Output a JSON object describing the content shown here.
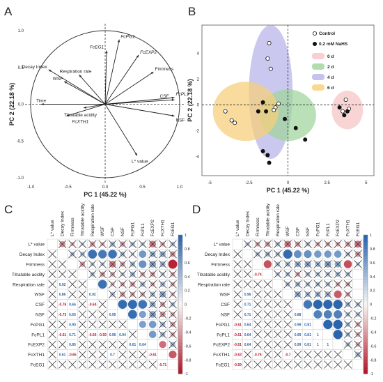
{
  "panels": {
    "A": "A",
    "B": "B",
    "C": "C",
    "D": "D"
  },
  "chart_data": [
    {
      "type": "scatter",
      "subtype": "biplot-loadings",
      "xlabel": "PC 1 (45.22 %)",
      "ylabel": "PC 2 (22.18 %)",
      "xlim": [
        -1.0,
        1.0
      ],
      "ylim": [
        -1.0,
        1.0
      ],
      "x_ticks": [
        "-1.0",
        "-0.5",
        "0.0",
        "0.5",
        "1.0"
      ],
      "y_ticks": [
        "1.0",
        "0.5",
        "0.0",
        "-0.5",
        "-1.0"
      ],
      "grid": false,
      "vectors": [
        {
          "label": "FcPG1",
          "x": 0.19,
          "y": 0.88
        },
        {
          "label": "FcEG1",
          "x": 0.02,
          "y": 0.73
        },
        {
          "label": "FcEXP2",
          "x": 0.45,
          "y": 0.67
        },
        {
          "label": "Firmness",
          "x": 0.65,
          "y": 0.44
        },
        {
          "label": "Decay Index",
          "x": -0.76,
          "y": 0.47
        },
        {
          "label": "Respiration rate",
          "x": -0.35,
          "y": 0.4
        },
        {
          "label": "WSF",
          "x": -0.55,
          "y": 0.31
        },
        {
          "label": "Time",
          "x": -0.86,
          "y": 0.0
        },
        {
          "label": "FcXTH1",
          "x": -0.52,
          "y": -0.16
        },
        {
          "label": "Titratable acidity",
          "x": -0.29,
          "y": -0.05
        },
        {
          "label": "CSF",
          "x": 0.93,
          "y": 0.06
        },
        {
          "label": "FcPL1",
          "x": 0.93,
          "y": 0.09
        },
        {
          "label": "NSF",
          "x": 0.93,
          "y": -0.16
        },
        {
          "label": "L* value",
          "x": 0.43,
          "y": -0.7
        }
      ]
    },
    {
      "type": "scatter",
      "subtype": "pca-scores",
      "xlabel": "PC 1 (45.22 %)",
      "ylabel": "PC 2 (22.18 %)",
      "xlim": [
        -5.5,
        5.5
      ],
      "ylim": [
        -5.5,
        6.2
      ],
      "x_ticks": [
        "-5",
        "-2.5",
        "0",
        "2.5",
        "5"
      ],
      "y_ticks": [
        "4",
        "2",
        "0",
        "-2",
        "-4"
      ],
      "legend_position": "top-right",
      "legend": [
        {
          "label": "Control",
          "marker": "open-circle"
        },
        {
          "label": "0.2 mM NaHS",
          "marker": "filled-circle"
        },
        {
          "label": "0 d",
          "color": "#f7c3c5"
        },
        {
          "label": "2 d",
          "color": "#9ed49a"
        },
        {
          "label": "4 d",
          "color": "#b7b3ea"
        },
        {
          "label": "6 d",
          "color": "#f7cf77"
        }
      ],
      "ellipses": [
        {
          "group": "0 d",
          "color": "#f7c3c5",
          "cx": 3.8,
          "cy": -0.4,
          "rx": 1.0,
          "ry": 1.5,
          "angle": 0
        },
        {
          "group": "4 d",
          "color": "#b7b3ea",
          "cx": -1.1,
          "cy": 1.0,
          "rx": 1.4,
          "ry": 5.2,
          "angle": 0
        },
        {
          "group": "2 d",
          "color": "#9ed49a",
          "cx": 0.0,
          "cy": -0.8,
          "rx": 1.8,
          "ry": 2.0,
          "angle": 0
        },
        {
          "group": "6 d",
          "color": "#f7cf77",
          "cx": -2.7,
          "cy": -0.5,
          "rx": 2.1,
          "ry": 2.3,
          "angle": 0
        }
      ],
      "points": [
        {
          "x": 3.7,
          "y": 0.4,
          "treatment": "Control",
          "day": "0 d"
        },
        {
          "x": 3.9,
          "y": -0.3,
          "treatment": "Control",
          "day": "0 d"
        },
        {
          "x": 3.5,
          "y": -0.5,
          "treatment": "Control",
          "day": "0 d"
        },
        {
          "x": 3.6,
          "y": -0.8,
          "treatment": "NaHS",
          "day": "0 d"
        },
        {
          "x": 3.8,
          "y": -0.5,
          "treatment": "NaHS",
          "day": "0 d"
        },
        {
          "x": 3.3,
          "y": -0.2,
          "treatment": "NaHS",
          "day": "0 d"
        },
        {
          "x": -1.2,
          "y": 4.8,
          "treatment": "Control",
          "day": "4 d"
        },
        {
          "x": -1.3,
          "y": 3.6,
          "treatment": "Control",
          "day": "4 d"
        },
        {
          "x": -1.1,
          "y": 2.8,
          "treatment": "Control",
          "day": "4 d"
        },
        {
          "x": -1.6,
          "y": -3.6,
          "treatment": "NaHS",
          "day": "4 d"
        },
        {
          "x": -1.3,
          "y": -3.9,
          "treatment": "NaHS",
          "day": "4 d"
        },
        {
          "x": -1.2,
          "y": -4.5,
          "treatment": "NaHS",
          "day": "4 d"
        },
        {
          "x": -0.8,
          "y": -0.2,
          "treatment": "Control",
          "day": "2 d"
        },
        {
          "x": -0.6,
          "y": 0.1,
          "treatment": "Control",
          "day": "2 d"
        },
        {
          "x": -0.9,
          "y": -0.4,
          "treatment": "Control",
          "day": "2 d"
        },
        {
          "x": 0.5,
          "y": -1.8,
          "treatment": "NaHS",
          "day": "2 d"
        },
        {
          "x": 1.1,
          "y": -2.7,
          "treatment": "NaHS",
          "day": "2 d"
        },
        {
          "x": -0.2,
          "y": -1.1,
          "treatment": "NaHS",
          "day": "2 d"
        },
        {
          "x": -4.0,
          "y": -0.5,
          "treatment": "Control",
          "day": "6 d"
        },
        {
          "x": -3.6,
          "y": -1.2,
          "treatment": "Control",
          "day": "6 d"
        },
        {
          "x": -3.4,
          "y": -1.4,
          "treatment": "Control",
          "day": "6 d"
        },
        {
          "x": -1.6,
          "y": 0.2,
          "treatment": "NaHS",
          "day": "6 d"
        },
        {
          "x": -1.4,
          "y": -0.5,
          "treatment": "NaHS",
          "day": "6 d"
        },
        {
          "x": -1.9,
          "y": -0.5,
          "treatment": "NaHS",
          "day": "6 d"
        }
      ]
    },
    {
      "type": "heatmap",
      "subtype": "correlation-matrix",
      "panel": "C",
      "variables": [
        "L* value",
        "Decay Index",
        "Firmness",
        "Titratable acidity",
        "Respiration rate",
        "WSF",
        "CSF",
        "NSF",
        "FcPG1",
        "FcPL1",
        "FcEXP2",
        "FcXTH1",
        "FcEG1"
      ],
      "colorbar_ticks": [
        "1",
        "0.8",
        "0.6",
        "0.4",
        "0.2",
        "0",
        "-0.2",
        "-0.4",
        "-0.6",
        "-0.8",
        "-1"
      ],
      "lower_values": [
        {
          "row": 4,
          "col": 1,
          "text": "0.92"
        },
        {
          "row": 5,
          "col": 1,
          "text": "0.86"
        },
        {
          "row": 5,
          "col": 4,
          "text": "0.92"
        },
        {
          "row": 6,
          "col": 1,
          "text": "-0.76"
        },
        {
          "row": 6,
          "col": 2,
          "text": "0.66"
        },
        {
          "row": 6,
          "col": 4,
          "text": "-0.64"
        },
        {
          "row": 7,
          "col": 1,
          "text": "-0.73"
        },
        {
          "row": 7,
          "col": 2,
          "text": "0.65"
        },
        {
          "row": 7,
          "col": 6,
          "text": "0.95"
        },
        {
          "row": 8,
          "col": 2,
          "text": "0.90"
        },
        {
          "row": 9,
          "col": 1,
          "text": "-0.61"
        },
        {
          "row": 9,
          "col": 2,
          "text": "0.71"
        },
        {
          "row": 9,
          "col": 4,
          "text": "-0.56"
        },
        {
          "row": 9,
          "col": 5,
          "text": "-0.59"
        },
        {
          "row": 9,
          "col": 6,
          "text": "0.96"
        },
        {
          "row": 9,
          "col": 7,
          "text": "0.94"
        },
        {
          "row": 10,
          "col": 2,
          "text": "0.85"
        },
        {
          "row": 10,
          "col": 8,
          "text": "0.61"
        },
        {
          "row": 10,
          "col": 9,
          "text": "0.64"
        },
        {
          "row": 11,
          "col": 1,
          "text": "0.61"
        },
        {
          "row": 11,
          "col": 2,
          "text": "-0.65"
        },
        {
          "row": 11,
          "col": 6,
          "text": "0.7"
        },
        {
          "row": 11,
          "col": 10,
          "text": "-0.61"
        },
        {
          "row": 12,
          "col": 11,
          "text": "-0.71"
        }
      ],
      "upper_values": [
        [
          0,
          1,
          -0.45,
          -0.25,
          0.2,
          -0.35,
          -0.25,
          0.35,
          -0.35,
          0.3,
          0.25,
          -0.55,
          -0.3,
          0.3
        ],
        [
          1,
          2,
          0.3,
          0.3,
          0.92,
          0.86,
          0.9,
          0.35,
          0.2,
          0.65,
          0.45,
          0.45,
          -0.4
        ],
        [
          2,
          3,
          -0.35,
          0.25,
          0.25,
          -0.55,
          -0.35,
          0.35,
          0.7,
          0.55,
          0.4,
          -0.95,
          -0.25
        ],
        [
          3,
          4,
          0.3,
          -0.35,
          -0.3,
          0.25,
          0.35,
          -0.3,
          -0.35,
          0.25,
          -0.3
        ],
        [
          4,
          5,
          0.92,
          -0.25,
          -0.3,
          -0.35,
          0.35,
          -0.3,
          0.35,
          -0.3
        ],
        [
          5,
          6,
          0.3,
          -0.35,
          -0.3,
          -0.3,
          0.35,
          0.5,
          -0.25
        ],
        [
          6,
          7,
          0.95,
          0.96,
          0.9,
          0.45,
          -0.35,
          0.3
        ],
        [
          7,
          8,
          0.94,
          0.6,
          0.55,
          -0.4,
          -0.3
        ],
        [
          8,
          9,
          0.6,
          0.64,
          0.35,
          -0.35
        ],
        [
          9,
          10,
          0.64,
          0.35,
          -0.3
        ],
        [
          10,
          11,
          -0.61,
          0.35
        ],
        [
          11,
          12,
          -0.71
        ]
      ]
    },
    {
      "type": "heatmap",
      "subtype": "correlation-matrix",
      "panel": "D",
      "variables": [
        "L* value",
        "Decay Index",
        "Firmness",
        "Titratable acidity",
        "Respiration rate",
        "WSF",
        "CSF",
        "NSF",
        "FcPG1",
        "FcPL1",
        "FcEXP2",
        "FcXTH1",
        "FcEG1"
      ],
      "colorbar_ticks": [
        "1",
        "0.8",
        "0.6",
        "0.4",
        "0.2",
        "0",
        "-0.2",
        "-0.4",
        "-0.6",
        "-0.8",
        "-1"
      ],
      "lower_values": [
        {
          "row": 3,
          "col": 2,
          "text": "-0.74"
        },
        {
          "row": 5,
          "col": 1,
          "text": "0.96"
        },
        {
          "row": 6,
          "col": 1,
          "text": "0.71"
        },
        {
          "row": 7,
          "col": 1,
          "text": "0.71"
        },
        {
          "row": 7,
          "col": 6,
          "text": "0.88"
        },
        {
          "row": 8,
          "col": 0,
          "text": "-0.61"
        },
        {
          "row": 8,
          "col": 1,
          "text": "0.64"
        },
        {
          "row": 8,
          "col": 6,
          "text": "0.99"
        },
        {
          "row": 8,
          "col": 7,
          "text": "0.81"
        },
        {
          "row": 9,
          "col": 0,
          "text": "-0.61"
        },
        {
          "row": 9,
          "col": 1,
          "text": "0.64"
        },
        {
          "row": 9,
          "col": 6,
          "text": "0.99"
        },
        {
          "row": 9,
          "col": 7,
          "text": "0.81"
        },
        {
          "row": 9,
          "col": 8,
          "text": "1"
        },
        {
          "row": 10,
          "col": 0,
          "text": "-0.61"
        },
        {
          "row": 10,
          "col": 1,
          "text": "0.64"
        },
        {
          "row": 10,
          "col": 6,
          "text": "0.99"
        },
        {
          "row": 10,
          "col": 7,
          "text": "0.81"
        },
        {
          "row": 10,
          "col": 8,
          "text": "1"
        },
        {
          "row": 10,
          "col": 9,
          "text": "1"
        },
        {
          "row": 11,
          "col": 0,
          "text": "-0.63"
        },
        {
          "row": 11,
          "col": 2,
          "text": "-0.76"
        },
        {
          "row": 11,
          "col": 5,
          "text": "-0.7"
        },
        {
          "row": 12,
          "col": 0,
          "text": "-0.59"
        }
      ],
      "upper_values": [
        [
          0,
          1,
          0.25,
          -0.3,
          -0.35,
          0.3,
          -0.55,
          -0.35,
          0.3,
          -0.3,
          -0.3,
          -0.3,
          -0.35,
          -0.59
        ],
        [
          1,
          2,
          0.3,
          0.35,
          0.3,
          0.96,
          0.71,
          0.71,
          0.64,
          0.64,
          0.64,
          0.3,
          -0.4
        ],
        [
          2,
          3,
          -0.74,
          0.3,
          0.35,
          0.45,
          0.5,
          0.4,
          0.55,
          0.5,
          -0.76,
          0.25
        ],
        [
          3,
          4,
          0.25,
          0.3,
          -0.3,
          0.3,
          0.3,
          0.3,
          0.35,
          0.3
        ],
        [
          4,
          5,
          0.3,
          0.35,
          0.3,
          0.3,
          0.3,
          -0.3,
          -0.3
        ],
        [
          5,
          6,
          0.45,
          0.35,
          0.4,
          0.4,
          -0.7,
          -0.3
        ],
        [
          6,
          7,
          0.88,
          0.99,
          0.99,
          0.99,
          0.35,
          0.3
        ],
        [
          7,
          8,
          0.81,
          0.81,
          0.81,
          0.3,
          0.3
        ],
        [
          8,
          9,
          1,
          1,
          0.3,
          -0.3
        ],
        [
          9,
          10,
          1,
          0.3,
          -0.3
        ],
        [
          10,
          11,
          0.3,
          -0.3
        ],
        [
          11,
          12,
          0.35
        ]
      ]
    }
  ]
}
